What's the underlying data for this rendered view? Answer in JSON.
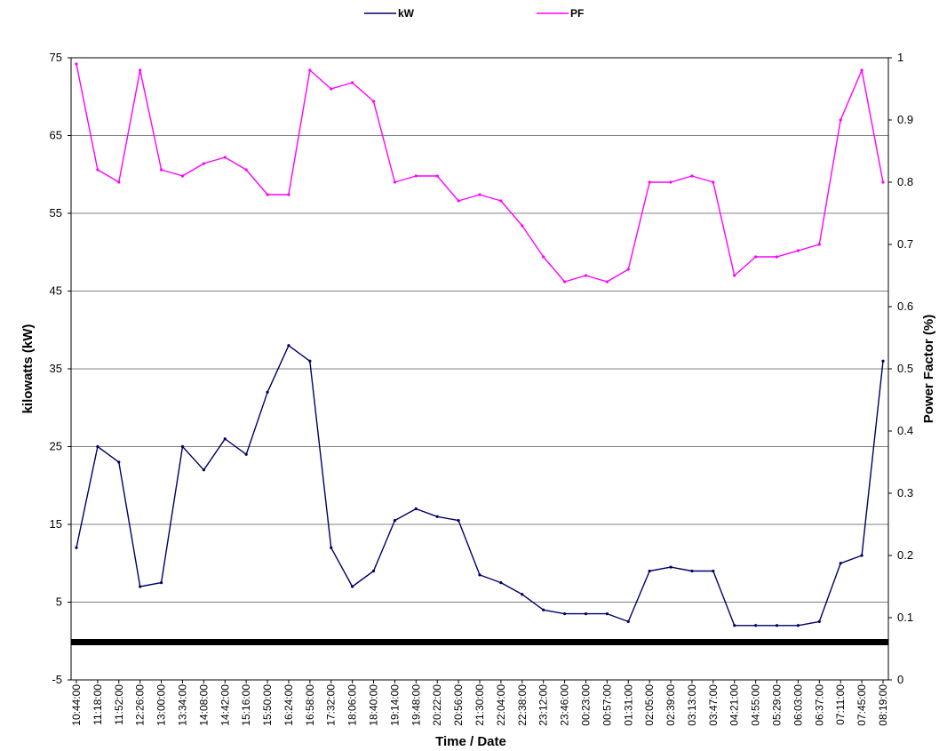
{
  "chart_data": {
    "type": "line",
    "xlabel": "Time / Date",
    "ylabel": "kilowatts (kW)",
    "y2label": "Power Factor (%)",
    "ylim": [
      -5,
      75
    ],
    "y2lim": [
      0,
      1
    ],
    "yticks": [
      "75",
      "65",
      "55",
      "45",
      "35",
      "25",
      "15",
      "5",
      "-5"
    ],
    "y2ticks": [
      "1",
      "0.9",
      "0.8",
      "0.7",
      "0.6",
      "0.5",
      "0.4",
      "0.3",
      "0.2",
      "0.1",
      "0"
    ],
    "categories": [
      "10:44:00",
      "11:18:00",
      "11:52:00",
      "12:26:00",
      "13:00:00",
      "13:34:00",
      "14:08:00",
      "14:42:00",
      "15:16:00",
      "15:50:00",
      "16:24:00",
      "16:58:00",
      "17:32:00",
      "18:06:00",
      "18:40:00",
      "19:14:00",
      "19:48:00",
      "20:22:00",
      "20:56:00",
      "21:30:00",
      "22:04:00",
      "22:38:00",
      "23:12:00",
      "23:46:00",
      "00:23:00",
      "00:57:00",
      "01:31:00",
      "02:05:00",
      "02:39:00",
      "03:13:00",
      "03:47:00",
      "04:21:00",
      "04:55:00",
      "05:29:00",
      "06:03:00",
      "06:37:00",
      "07:11:00",
      "07:45:00",
      "08:19:00"
    ],
    "grid": true,
    "legend_position": "top-center",
    "series": [
      {
        "name": "kW",
        "color": "#000066",
        "axis": "left",
        "values": [
          12,
          25,
          23,
          7,
          7.5,
          25,
          22,
          26,
          24,
          32,
          38,
          36,
          12,
          7,
          9,
          15.5,
          17,
          16,
          15.5,
          8.5,
          7.5,
          6,
          4,
          3.5,
          3.5,
          3.5,
          2.5,
          9,
          9.5,
          9,
          9,
          2,
          2,
          2,
          2,
          2.5,
          10,
          11,
          36
        ]
      },
      {
        "name": "PF",
        "color": "#ff00ff",
        "axis": "right",
        "values": [
          0.99,
          0.82,
          0.8,
          0.98,
          0.82,
          0.81,
          0.83,
          0.84,
          0.82,
          0.78,
          0.78,
          0.98,
          0.95,
          0.96,
          0.93,
          0.8,
          0.81,
          0.81,
          0.77,
          0.78,
          0.77,
          0.73,
          0.68,
          0.64,
          0.65,
          0.64,
          0.66,
          0.8,
          0.8,
          0.81,
          0.8,
          0.65,
          0.68,
          0.68,
          0.69,
          0.7,
          0.9,
          0.98,
          0.8
        ]
      }
    ]
  }
}
